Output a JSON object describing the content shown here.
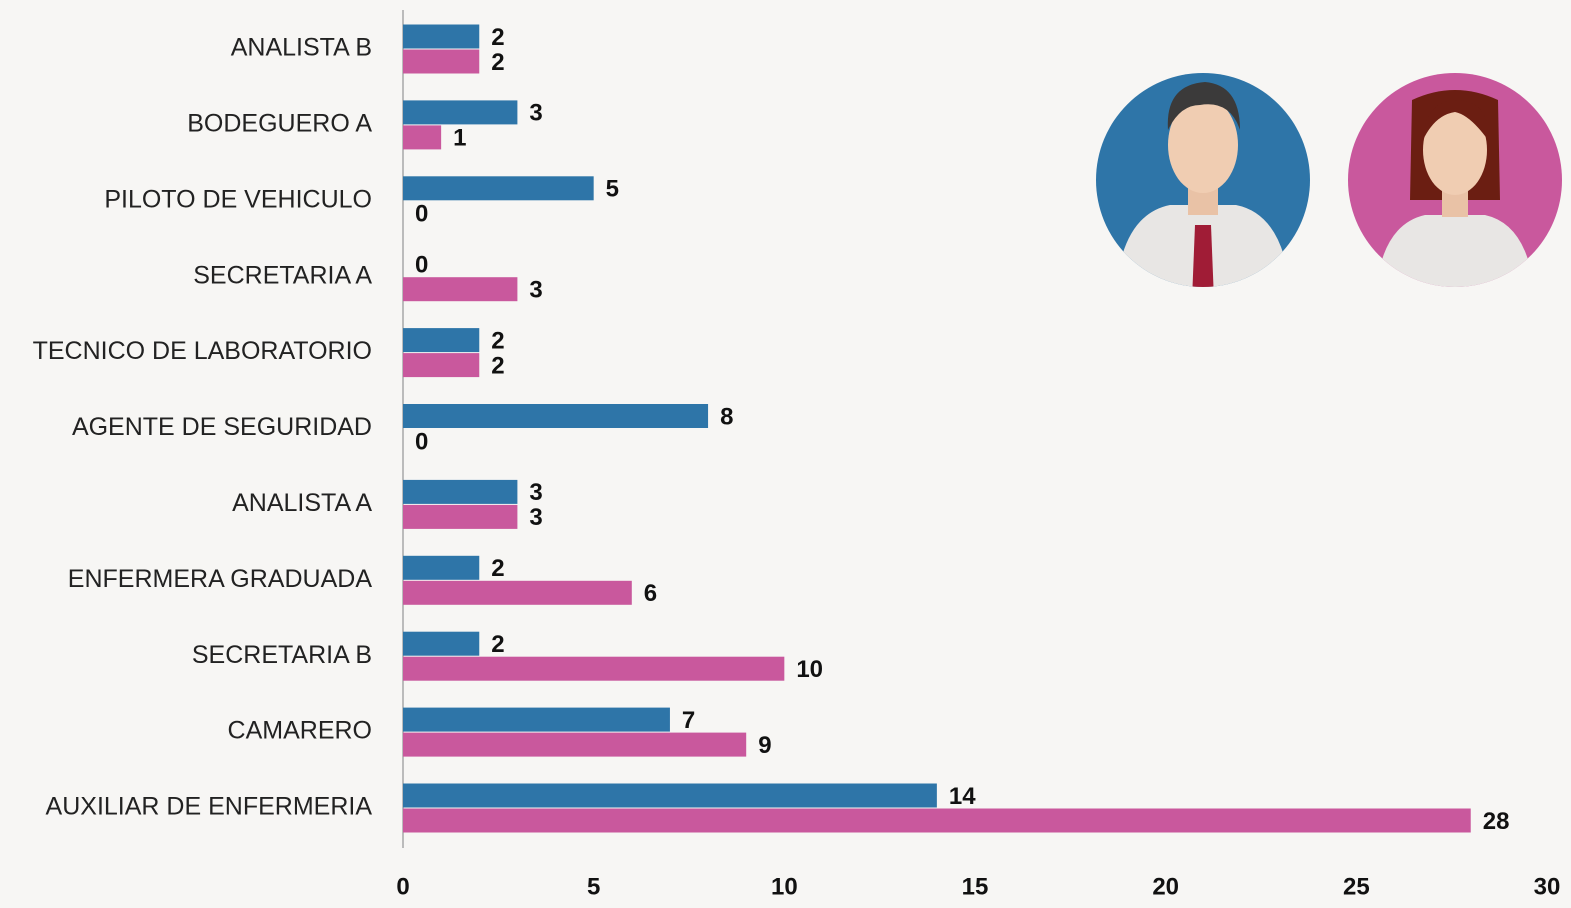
{
  "chart_data": {
    "type": "bar",
    "orientation": "horizontal",
    "categories": [
      "ANALISTA B",
      "BODEGUERO A",
      "PILOTO DE VEHICULO",
      "SECRETARIA A",
      "TECNICO DE LABORATORIO",
      "AGENTE DE SEGURIDAD",
      "ANALISTA A",
      "ENFERMERA GRADUADA",
      "SECRETARIA B",
      "CAMARERO",
      "AUXILIAR DE ENFERMERIA"
    ],
    "series": [
      {
        "color": "#2e75a8",
        "values": [
          2,
          3,
          5,
          0,
          2,
          8,
          3,
          2,
          2,
          7,
          14
        ]
      },
      {
        "color": "#c9589d",
        "values": [
          2,
          1,
          0,
          3,
          2,
          0,
          3,
          6,
          10,
          9,
          28
        ]
      }
    ],
    "xlim": [
      0,
      30
    ],
    "xticks": [
      0,
      5,
      10,
      15,
      20,
      25,
      30
    ],
    "grid": false
  }
}
